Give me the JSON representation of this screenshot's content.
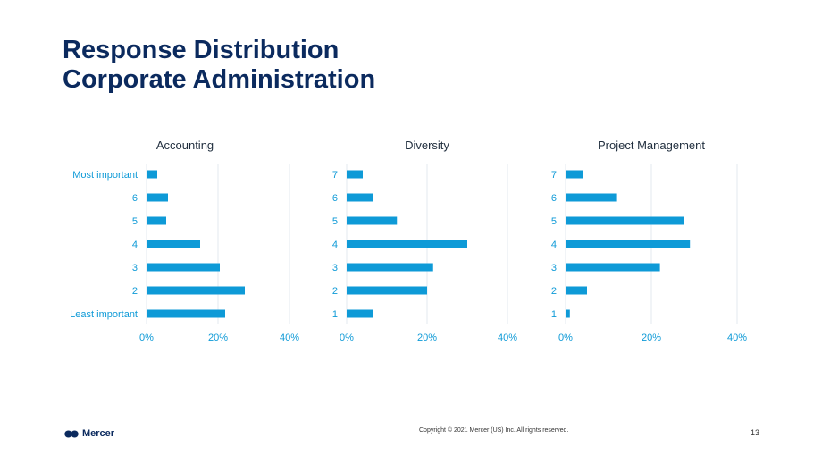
{
  "title": {
    "line1": "Response Distribution",
    "line2": "Corporate Administration"
  },
  "chart_data": [
    {
      "type": "bar",
      "orientation": "horizontal",
      "title": "Accounting",
      "categories": [
        "Most important",
        "6",
        "5",
        "4",
        "3",
        "2",
        "Least important"
      ],
      "values": [
        3,
        6,
        5.5,
        15,
        20.5,
        27.5,
        22
      ],
      "xlim": [
        0,
        40
      ],
      "xticks": [
        "0%",
        "20%",
        "40%"
      ],
      "color": "#0e9ad7"
    },
    {
      "type": "bar",
      "orientation": "horizontal",
      "title": "Diversity",
      "categories": [
        "7",
        "6",
        "5",
        "4",
        "3",
        "2",
        "1"
      ],
      "values": [
        4,
        6.5,
        12.5,
        30,
        21.5,
        20,
        6.5
      ],
      "xlim": [
        0,
        40
      ],
      "xticks": [
        "0%",
        "20%",
        "40%"
      ],
      "color": "#0e9ad7"
    },
    {
      "type": "bar",
      "orientation": "horizontal",
      "title": "Project Management",
      "categories": [
        "7",
        "6",
        "5",
        "4",
        "3",
        "2",
        "1"
      ],
      "values": [
        4,
        12,
        27.5,
        29,
        22,
        5,
        1
      ],
      "xlim": [
        0,
        40
      ],
      "xticks": [
        "0%",
        "20%",
        "40%"
      ],
      "color": "#0e9ad7"
    }
  ],
  "footer": {
    "logo_text": "Mercer",
    "copyright": "Copyright © 2021 Mercer (US) Inc. All rights reserved.",
    "page_number": "13"
  },
  "colors": {
    "title": "#0b2a5e",
    "bar": "#0e9ad7",
    "axis_text": "#0e9ad7",
    "chart_title": "#1f2d3d",
    "gridline": "#e3e8ef"
  }
}
